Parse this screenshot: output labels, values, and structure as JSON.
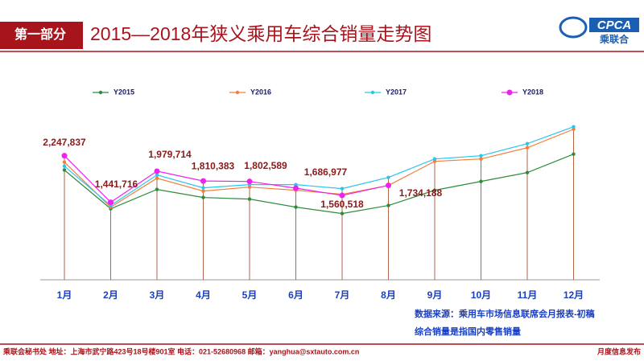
{
  "header": {
    "section": "第一部分",
    "logo_text": "CPCA",
    "logo_subtext": "乘联合"
  },
  "chart_data": {
    "type": "line",
    "title": "2015—2018年狭义乘用车综合销量走势图",
    "categories": [
      "1月",
      "2月",
      "3月",
      "4月",
      "5月",
      "6月",
      "7月",
      "8月",
      "9月",
      "10月",
      "11月",
      "12月"
    ],
    "ylim": [
      100000,
      2800000
    ],
    "series": [
      {
        "name": "Y2015",
        "color": "#2e8b3a",
        "values": [
          2000000,
          1330000,
          1664000,
          1525000,
          1497000,
          1358000,
          1247000,
          1386000,
          1650000,
          1803000,
          1956000,
          2276000
        ]
      },
      {
        "name": "Y2016",
        "color": "#f07f3c",
        "values": [
          2136000,
          1358000,
          1858000,
          1636000,
          1705000,
          1650000,
          1580000,
          1733000,
          2150000,
          2192000,
          2386000,
          2706000
        ]
      },
      {
        "name": "Y2017",
        "color": "#29c5f0",
        "values": [
          2067000,
          1386000,
          1914000,
          1692000,
          1747000,
          1747000,
          1678000,
          1872000,
          2192000,
          2248000,
          2456000,
          2748000
        ]
      },
      {
        "name": "Y2018",
        "color": "#ee22ee",
        "values": [
          2247837,
          1441716,
          1979714,
          1810383,
          1802589,
          1686977,
          1560518,
          1734188,
          null,
          null,
          null,
          null
        ],
        "value_labels": [
          "2,247,837",
          "1,441,716",
          "1,979,714",
          "1,810,383",
          "1,802,589",
          "1,686,977",
          "1,560,518",
          "1,734,188",
          null,
          null,
          null,
          null
        ]
      }
    ],
    "notes": [
      "数据来源：乘用车市场信息联席会月报表-初稿",
      "综合销量是指国内零售销量"
    ]
  },
  "footer": {
    "left": "乘联会秘书处  地址：上海市武宁路423号18号楼901室  电话：021-52680968  邮箱：yanghua@sxtauto.com.cn",
    "right": "月度信息发布"
  }
}
